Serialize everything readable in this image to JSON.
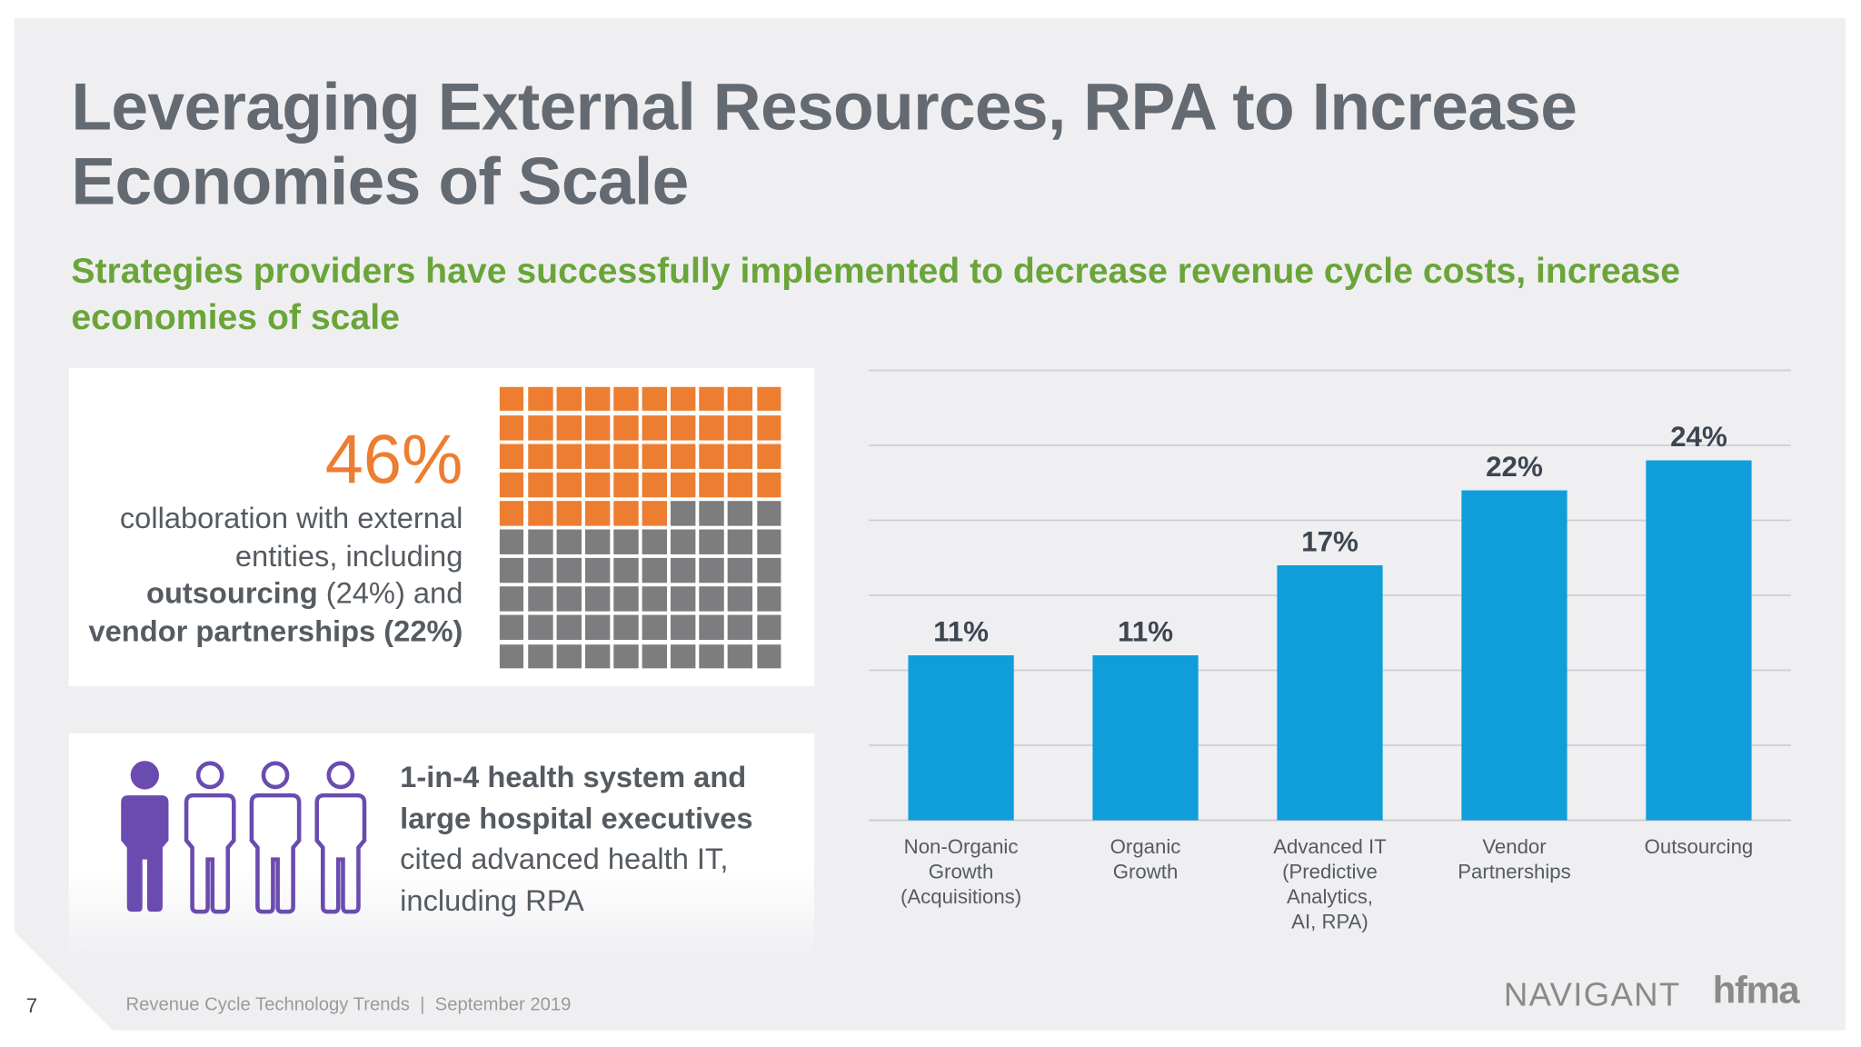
{
  "title": "Leveraging External Resources, RPA to Increase Economies of Scale",
  "subtitle": "Strategies providers have successfully implemented to decrease revenue cycle costs, increase economies of scale",
  "card1": {
    "percent": "46%",
    "line1": "collaboration with external entities, including",
    "outsourcing": "outsourcing",
    "outsourcing_pct": " (24%) and",
    "vendor": "vendor partnerships (22%)",
    "waffle_filled": 46,
    "waffle_total": 100,
    "colors": {
      "filled": "#ed7d31",
      "empty": "#7d7c7f"
    }
  },
  "card2": {
    "bold": "1-in-4 health system and large hospital executives",
    "rest": "cited advanced health IT, including RPA",
    "people_highlighted": 1,
    "people_total": 4,
    "icon": "person-icon",
    "color": "#6a4bb0"
  },
  "chart_data": {
    "type": "bar",
    "categories": [
      "Non-Organic Growth (Acquisitions)",
      "Organic Growth",
      "Advanced IT (Predictive Analytics, AI, RPA)",
      "Vendor Partnerships",
      "Outsourcing"
    ],
    "category_lines": [
      [
        "Non-Organic",
        "Growth",
        "(Acquisitions)"
      ],
      [
        "Organic",
        "Growth"
      ],
      [
        "Advanced IT",
        "(Predictive",
        "Analytics,",
        "AI, RPA)"
      ],
      [
        "Vendor",
        "Partnerships"
      ],
      [
        "Outsourcing"
      ]
    ],
    "values": [
      11,
      11,
      17,
      22,
      24
    ],
    "data_labels": [
      "11%",
      "11%",
      "17%",
      "22%",
      "24%"
    ],
    "ylim": [
      0,
      30
    ],
    "grid": true,
    "grid_step": 5,
    "bar_color": "#0f9ed9"
  },
  "footer": {
    "page": "7",
    "text": "Revenue Cycle Technology Trends  |  September 2019",
    "logo1": "NAVIGANT",
    "logo2": "hfma"
  }
}
